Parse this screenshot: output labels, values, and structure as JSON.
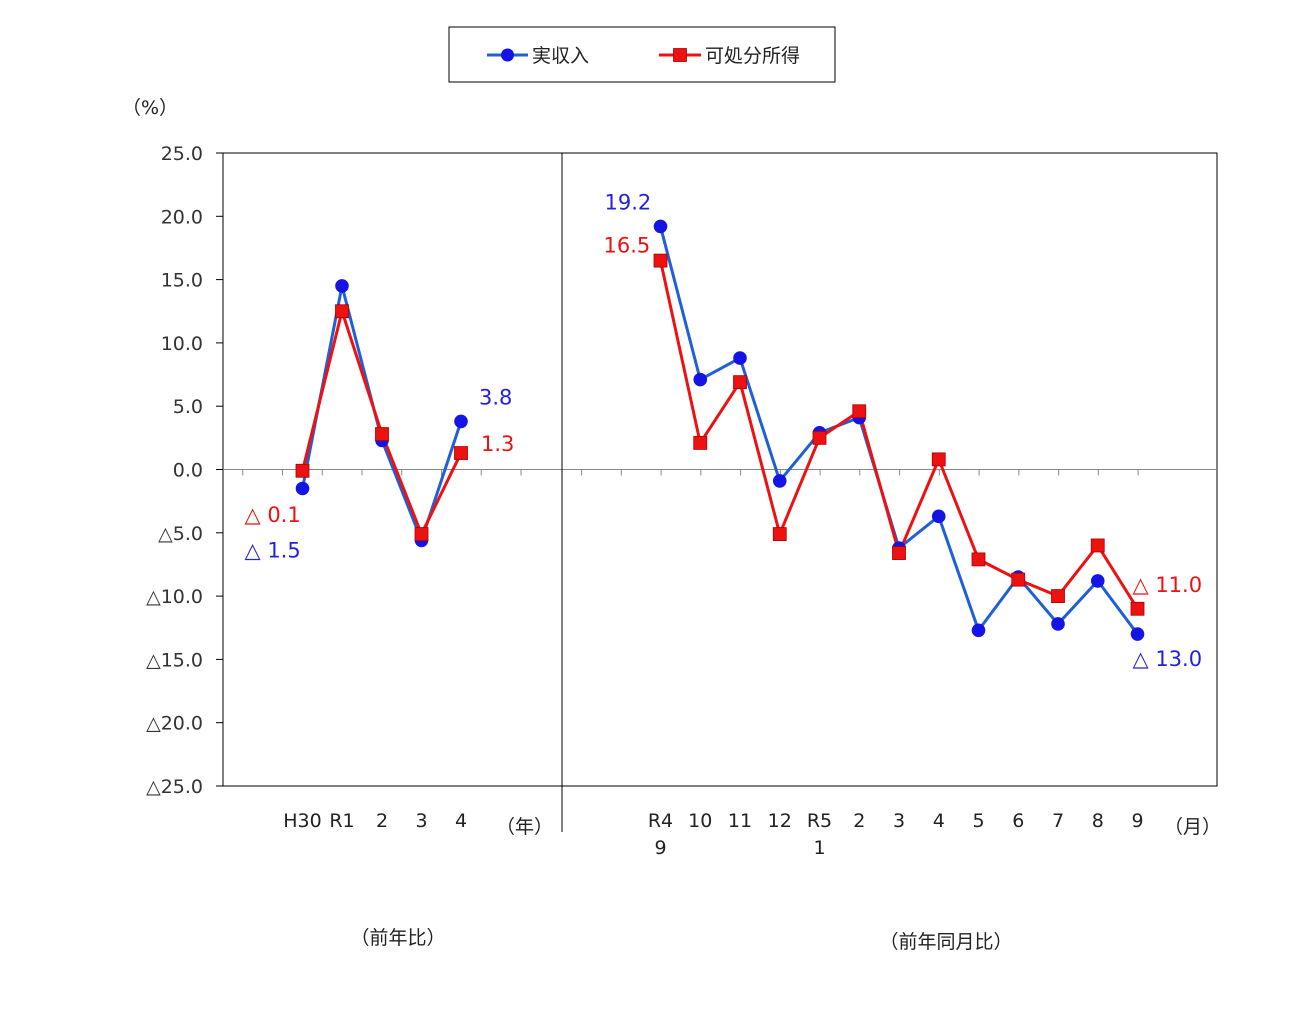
{
  "chart_data": {
    "type": "line",
    "y_unit": "（%）",
    "ylim": [
      -25,
      25
    ],
    "y_ticks": [
      {
        "value": 25,
        "label": "25.0"
      },
      {
        "value": 20,
        "label": "20.0"
      },
      {
        "value": 15,
        "label": "15.0"
      },
      {
        "value": 10,
        "label": "10.0"
      },
      {
        "value": 5,
        "label": "5.0"
      },
      {
        "value": 0,
        "label": "0.0"
      },
      {
        "value": -5,
        "label": "△5.0"
      },
      {
        "value": -10,
        "label": "△10.0"
      },
      {
        "value": -15,
        "label": "△15.0"
      },
      {
        "value": -20,
        "label": "△20.0"
      },
      {
        "value": -25,
        "label": "△25.0"
      }
    ],
    "legend": {
      "placement": "top-center"
    },
    "colors": {
      "actual_income": "#1f5fd8",
      "disposable_income": "#ee1111"
    },
    "panels": [
      {
        "caption": "（前年比）",
        "unit_label": "（年）",
        "categories": [
          {
            "line1": "H30",
            "line2": ""
          },
          {
            "line1": "R1",
            "line2": ""
          },
          {
            "line1": "2",
            "line2": ""
          },
          {
            "line1": "3",
            "line2": ""
          },
          {
            "line1": "4",
            "line2": ""
          }
        ],
        "series": [
          {
            "name": "実収入",
            "values": [
              -1.5,
              14.5,
              2.3,
              -5.6,
              3.8
            ]
          },
          {
            "name": "可処分所得",
            "values": [
              -0.1,
              12.5,
              2.8,
              -5.1,
              1.3
            ]
          }
        ],
        "annotations": [
          {
            "text": "△ 0.1",
            "series": 1,
            "index": 0,
            "pos": "left-below-1"
          },
          {
            "text": "△ 1.5",
            "series": 0,
            "index": 0,
            "pos": "left-below-2"
          },
          {
            "text": "3.8",
            "series": 0,
            "index": 4,
            "pos": "right-above"
          },
          {
            "text": "1.3",
            "series": 1,
            "index": 4,
            "pos": "right"
          }
        ]
      },
      {
        "caption": "（前年同月比）",
        "unit_label": "（月）",
        "categories": [
          {
            "line1": "R4",
            "line2": "9"
          },
          {
            "line1": "10",
            "line2": ""
          },
          {
            "line1": "11",
            "line2": ""
          },
          {
            "line1": "12",
            "line2": ""
          },
          {
            "line1": "R5",
            "line2": "1"
          },
          {
            "line1": "2",
            "line2": ""
          },
          {
            "line1": "3",
            "line2": ""
          },
          {
            "line1": "4",
            "line2": ""
          },
          {
            "line1": "5",
            "line2": ""
          },
          {
            "line1": "6",
            "line2": ""
          },
          {
            "line1": "7",
            "line2": ""
          },
          {
            "line1": "8",
            "line2": ""
          },
          {
            "line1": "9",
            "line2": ""
          }
        ],
        "series": [
          {
            "name": "実収入",
            "values": [
              19.2,
              7.1,
              8.8,
              -0.9,
              2.9,
              4.1,
              -6.2,
              -3.7,
              -12.7,
              -8.5,
              -12.2,
              -8.8,
              -13.0
            ]
          },
          {
            "name": "可処分所得",
            "values": [
              16.5,
              2.1,
              6.9,
              -5.1,
              2.5,
              4.6,
              -6.6,
              0.8,
              -7.1,
              -8.7,
              -10.0,
              -6.0,
              -11.0
            ]
          }
        ],
        "annotations": [
          {
            "text": "19.2",
            "series": 0,
            "index": 0,
            "pos": "left-above"
          },
          {
            "text": "16.5",
            "series": 1,
            "index": 0,
            "pos": "left-above-2"
          },
          {
            "text": "△ 11.0",
            "series": 1,
            "index": 12,
            "pos": "right-above"
          },
          {
            "text": "△ 13.0",
            "series": 0,
            "index": 12,
            "pos": "right-below"
          }
        ]
      }
    ]
  }
}
